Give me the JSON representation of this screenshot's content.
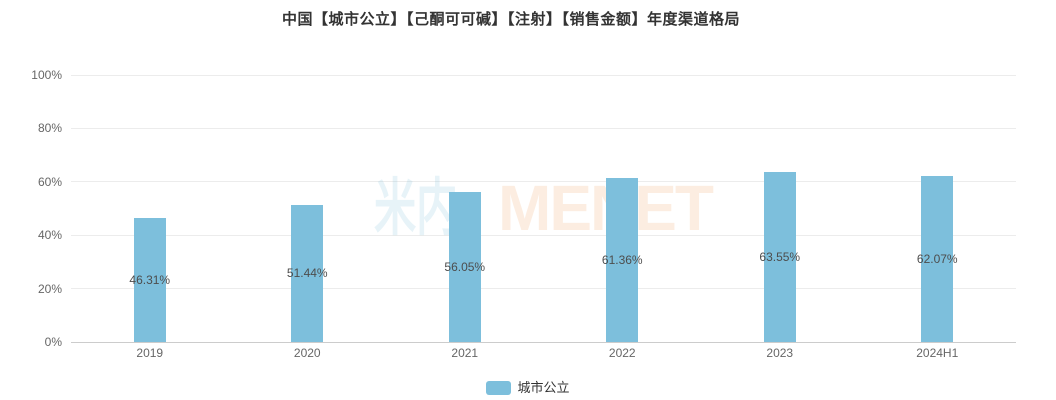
{
  "title": "中国【城市公立】【己酮可可碱】【注射】【销售金额】年度渠道格局",
  "watermark": {
    "cn": "米内",
    "en": "MENET"
  },
  "legend": {
    "label": "城市公立"
  },
  "colors": {
    "bar": "#7dbfdc",
    "title_text": "#333333",
    "axis_label": "#666666",
    "data_label": "#4d4d4d",
    "gridline": "#ececec",
    "axis_line": "#cccccc",
    "watermark_cn": "rgba(124,189,218,0.18)",
    "watermark_en": "rgba(240,150,80,0.17)"
  },
  "chart_data": {
    "type": "bar",
    "title": "中国【城市公立】【己酮可可碱】【注射】【销售金额】年度渠道格局",
    "categories": [
      "2019",
      "2020",
      "2021",
      "2022",
      "2023",
      "2024H1"
    ],
    "series": [
      {
        "name": "城市公立",
        "values": [
          46.31,
          51.44,
          56.05,
          61.36,
          63.55,
          62.07
        ]
      }
    ],
    "value_labels": [
      "46.31%",
      "51.44%",
      "56.05%",
      "61.36%",
      "62.07%"
    ],
    "value_labels_full": [
      "46.31%",
      "51.44%",
      "56.05%",
      "61.36%",
      "63.55%",
      "62.07%"
    ],
    "xlabel": "",
    "ylabel": "",
    "y_ticks": [
      "0%",
      "20%",
      "40%",
      "60%",
      "80%",
      "100%"
    ],
    "ylim": [
      0,
      100
    ],
    "grid": true,
    "legend_position": "bottom",
    "label_position": "inside-middle"
  }
}
